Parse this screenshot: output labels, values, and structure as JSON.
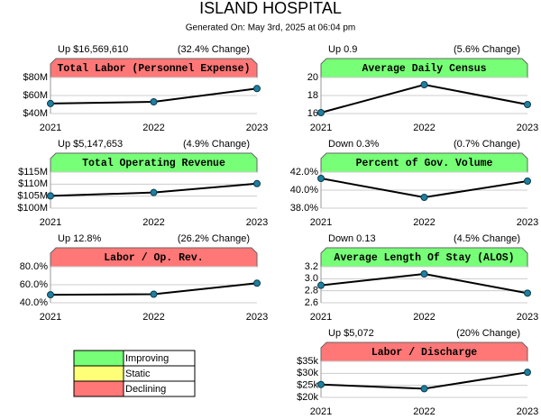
{
  "header": {
    "title": "ISLAND HOSPITAL",
    "subtitle": "Generated On: May 3rd, 2025 at 06:04 pm"
  },
  "chart_data": [
    {
      "type": "line",
      "title": "Total Labor (Personnel Expense)",
      "summary": "Up $16,569,610",
      "change": "(32.4% Change)",
      "color": "#ff7777",
      "categories": [
        "2021",
        "2022",
        "2023"
      ],
      "values": [
        51.1,
        53,
        67.7
      ],
      "line_color": "#000000",
      "marker_color": "#1f7fa0",
      "ylim": [
        40,
        80
      ],
      "yticks": [
        {
          "value": 80,
          "label": "$80M"
        },
        {
          "value": 60,
          "label": "$60M"
        },
        {
          "value": 40,
          "label": "$40M"
        }
      ],
      "grid": true
    },
    {
      "type": "line",
      "title": "Average Daily Census",
      "summary": "Up 0.9",
      "change": "(5.6% Change)",
      "color": "#77ff77",
      "categories": [
        "2021",
        "2022",
        "2023"
      ],
      "values": [
        16.1,
        19.2,
        17
      ],
      "line_color": "#000000",
      "marker_color": "#1f7fa0",
      "ylim": [
        16,
        20
      ],
      "yticks": [
        20,
        18,
        16
      ],
      "grid": true
    },
    {
      "type": "line",
      "title": "Total Operating Revenue",
      "summary": "Up $5,147,653",
      "change": "(4.9% Change)",
      "color": "#77ff77",
      "categories": [
        "2021",
        "2022",
        "2023"
      ],
      "values": [
        105.1,
        106.5,
        110.2
      ],
      "line_color": "#000000",
      "marker_color": "#1f7fa0",
      "ylim": [
        100,
        115
      ],
      "yticks": [
        {
          "value": 115,
          "label": "$115M"
        },
        {
          "value": 110,
          "label": "$110M"
        },
        {
          "value": 105,
          "label": "$105M"
        },
        {
          "value": 100,
          "label": "$100M"
        }
      ],
      "grid": true
    },
    {
      "type": "line",
      "title": "Percent of Gov. Volume",
      "summary": "Down 0.3%",
      "change": "(0.7% Change)",
      "color": "#77ff77",
      "categories": [
        "2021",
        "2022",
        "2023"
      ],
      "values": [
        41.3,
        39.2,
        41.0
      ],
      "line_color": "#000000",
      "marker_color": "#1f7fa0",
      "ylim": [
        38,
        42
      ],
      "yticks": [
        {
          "value": 42,
          "label": "42.0%"
        },
        {
          "value": 40,
          "label": "40.0%"
        },
        {
          "value": 38,
          "label": "38.0%"
        }
      ],
      "grid": true
    },
    {
      "type": "line",
      "title": "Labor / Op. Rev.",
      "summary": "Up 12.8%",
      "change": "(26.2% Change)",
      "color": "#ff7777",
      "categories": [
        "2021",
        "2022",
        "2023"
      ],
      "values": [
        48.9,
        49.5,
        61.7
      ],
      "line_color": "#000000",
      "marker_color": "#1f7fa0",
      "ylim": [
        40,
        80
      ],
      "yticks": [
        {
          "value": 80,
          "label": "80.0%"
        },
        {
          "value": 60,
          "label": "60.0%"
        },
        {
          "value": 40,
          "label": "40.0%"
        }
      ],
      "grid": true
    },
    {
      "type": "line",
      "title": "Average Length Of Stay (ALOS)",
      "summary": "Down 0.13",
      "change": "(4.5% Change)",
      "color": "#77ff77",
      "categories": [
        "2021",
        "2022",
        "2023"
      ],
      "values": [
        2.89,
        3.08,
        2.76
      ],
      "line_color": "#000000",
      "marker_color": "#1f7fa0",
      "ylim": [
        2.6,
        3.2
      ],
      "yticks": [
        3.2,
        {
          "value": 3,
          "label": "3.0"
        },
        2.8,
        2.6
      ],
      "grid": true
    },
    {
      "type": "line",
      "title": "Labor / Discharge",
      "summary": "Up $5,072",
      "change": "(20% Change)",
      "color": "#ff7777",
      "categories": [
        "2021",
        "2022",
        "2023"
      ],
      "values": [
        25.36,
        23.6,
        30.43
      ],
      "line_color": "#000000",
      "marker_color": "#1f7fa0",
      "ylim": [
        20,
        35
      ],
      "yticks": [
        {
          "value": 35,
          "label": "$35k"
        },
        {
          "value": 30,
          "label": "$30k"
        },
        {
          "value": 25,
          "label": "$25k"
        },
        {
          "value": 20,
          "label": "$20k"
        }
      ],
      "grid": true
    }
  ],
  "legend": {
    "items": [
      {
        "label": "Improving",
        "color": "#77ff77"
      },
      {
        "label": "Static",
        "color": "#ffff77"
      },
      {
        "label": "Declining",
        "color": "#ff7777"
      }
    ]
  }
}
